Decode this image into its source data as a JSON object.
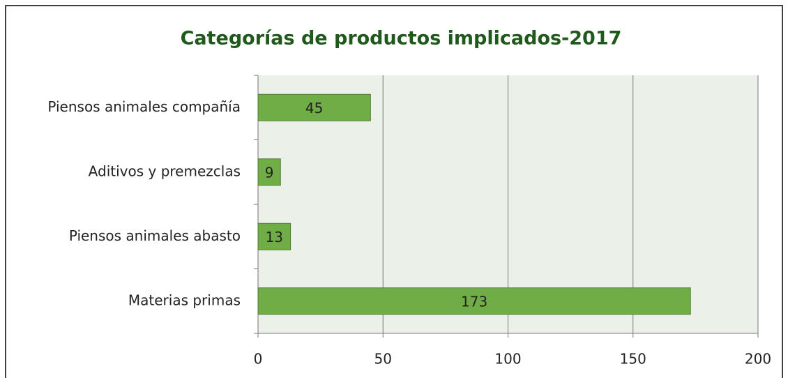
{
  "chart_data": {
    "type": "hbar",
    "title": "Categorías de  productos implicados-2017",
    "categories": [
      "Piensos animales compañía",
      "Aditivos y premezclas",
      "Piensos animales abasto",
      "Materias primas"
    ],
    "values": [
      45,
      9,
      13,
      173
    ],
    "color": "#70ad47",
    "xlim": [
      0,
      200
    ],
    "xticks": [
      0,
      50,
      100,
      150,
      200
    ],
    "grid": true
  }
}
